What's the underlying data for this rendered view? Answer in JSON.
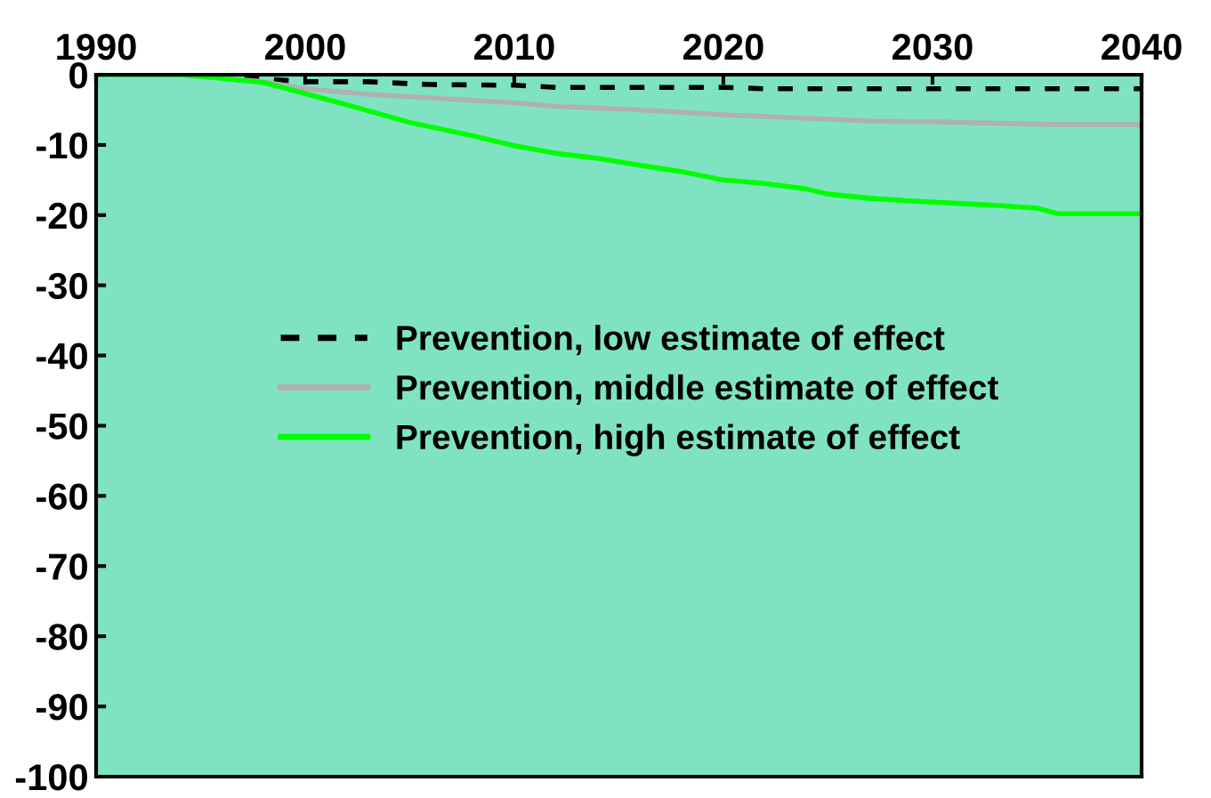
{
  "chart_data": {
    "type": "line",
    "xlim": [
      1990,
      2040
    ],
    "xticks": [
      1990,
      2000,
      2010,
      2020,
      2030,
      2040
    ],
    "ylim": [
      -100,
      0
    ],
    "yticks": [
      0,
      -10,
      -20,
      -30,
      -40,
      -50,
      -60,
      -70,
      -80,
      -90,
      -100
    ],
    "legend": "center",
    "grid": false,
    "marker": "none",
    "series": [
      {
        "name": "Prevention, low estimate of effect",
        "color": "#000000",
        "line_style": "dashed",
        "x": [
          1990,
          1994,
          1996,
          1998,
          2000,
          2003,
          2006,
          2010,
          2012,
          2016,
          2020,
          2022,
          2026,
          2030,
          2035,
          2040
        ],
        "values": [
          0,
          0,
          -0.2,
          -0.6,
          -1,
          -1,
          -1.4,
          -1.5,
          -1.8,
          -1.8,
          -1.8,
          -2,
          -2,
          -2,
          -2,
          -2
        ]
      },
      {
        "name": "Prevention, middle estimate of effect",
        "color": "#b0b0b0",
        "line_style": "solid",
        "x": [
          1990,
          1994,
          1998,
          2000,
          2003,
          2006,
          2010,
          2012,
          2016,
          2020,
          2024,
          2027,
          2030,
          2033,
          2036,
          2040
        ],
        "values": [
          0,
          0,
          -1,
          -2,
          -2.8,
          -3.3,
          -4,
          -4.5,
          -5,
          -5.7,
          -6.2,
          -6.6,
          -6.7,
          -6.9,
          -7.1,
          -7.1
        ]
      },
      {
        "name": "Prevention, high estimate of effect",
        "color": "#00ff00",
        "line_style": "solid",
        "x": [
          1990,
          1994,
          1996,
          1998,
          2000,
          2002,
          2005,
          2008,
          2010,
          2012,
          2014,
          2016,
          2018,
          2020,
          2022,
          2024,
          2025,
          2027,
          2029,
          2031,
          2033,
          2035,
          2036,
          2040
        ],
        "values": [
          0,
          0,
          -0.5,
          -1.1,
          -2.7,
          -4.3,
          -6.8,
          -8.7,
          -10.1,
          -11.2,
          -11.9,
          -12.9,
          -13.8,
          -15,
          -15.5,
          -16.3,
          -17,
          -17.6,
          -18,
          -18.3,
          -18.6,
          -19,
          -19.8,
          -19.8
        ]
      }
    ]
  }
}
